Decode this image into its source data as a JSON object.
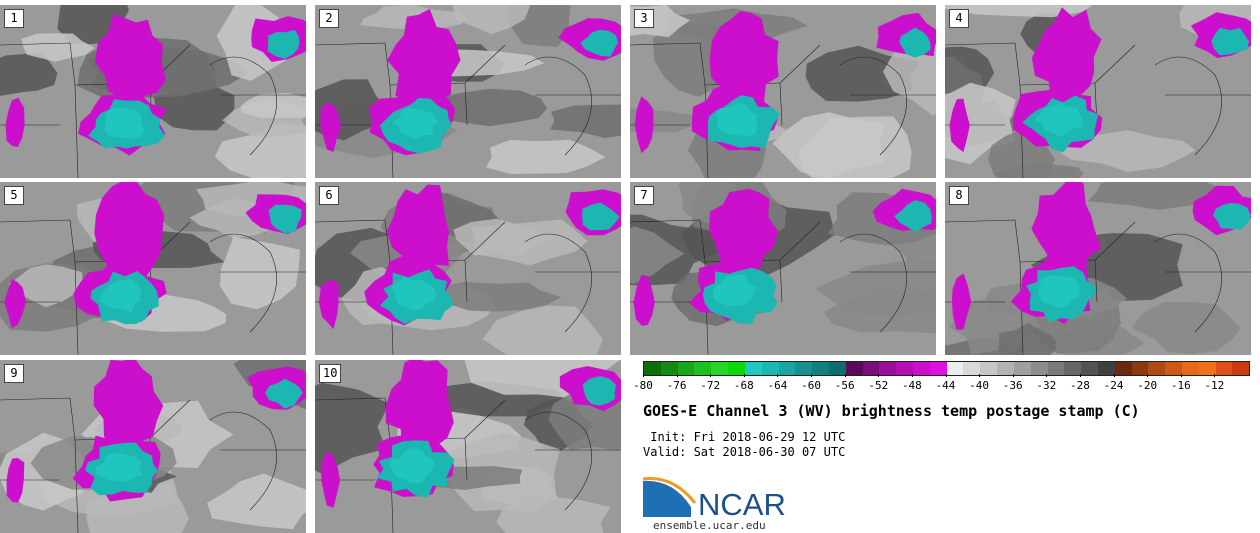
{
  "panels": [
    {
      "label": "1"
    },
    {
      "label": "2"
    },
    {
      "label": "3"
    },
    {
      "label": "4"
    },
    {
      "label": "5"
    },
    {
      "label": "6"
    },
    {
      "label": "7"
    },
    {
      "label": "8"
    },
    {
      "label": "9"
    },
    {
      "label": "10"
    }
  ],
  "colorbar": {
    "ticks": [
      "-80",
      "-76",
      "-72",
      "-68",
      "-64",
      "-60",
      "-56",
      "-52",
      "-48",
      "-44",
      "-40",
      "-36",
      "-32",
      "-28",
      "-24",
      "-20",
      "-16",
      "-12"
    ],
    "colors": [
      "#0a6e0a",
      "#138a13",
      "#1aa51a",
      "#1fbf1f",
      "#27d627",
      "#0bd80b",
      "#22c9c0",
      "#1db7b2",
      "#1aa5a2",
      "#159290",
      "#11807e",
      "#0d6e6c",
      "#5a0a5a",
      "#7a0f7a",
      "#990f99",
      "#b30fb3",
      "#cc0fcc",
      "#e011e0",
      "#ededed",
      "#d9d9d9",
      "#c6c6c6",
      "#b3b3b3",
      "#a0a0a0",
      "#8d8d8d",
      "#7a7a7a",
      "#666666",
      "#535353",
      "#404040",
      "#6a2a10",
      "#8c3a12",
      "#b04a14",
      "#cc5a16",
      "#e8681a",
      "#f0701c",
      "#e0501a",
      "#cc3a12"
    ]
  },
  "title": "GOES-E Channel 3 (WV) brightness temp postage stamp (C)",
  "init_label": " Init: Fri 2018-06-29 12 UTC",
  "valid_label": "Valid: Sat 2018-06-30 07 UTC",
  "logo_text": "NCAR",
  "site": "ensemble.ucar.edu",
  "colors": {
    "cold_cloud": "#1db7b2",
    "moisture": "#cc0fcc",
    "background_dark": "#6f6f6f",
    "background_light": "#b8b8b8"
  }
}
